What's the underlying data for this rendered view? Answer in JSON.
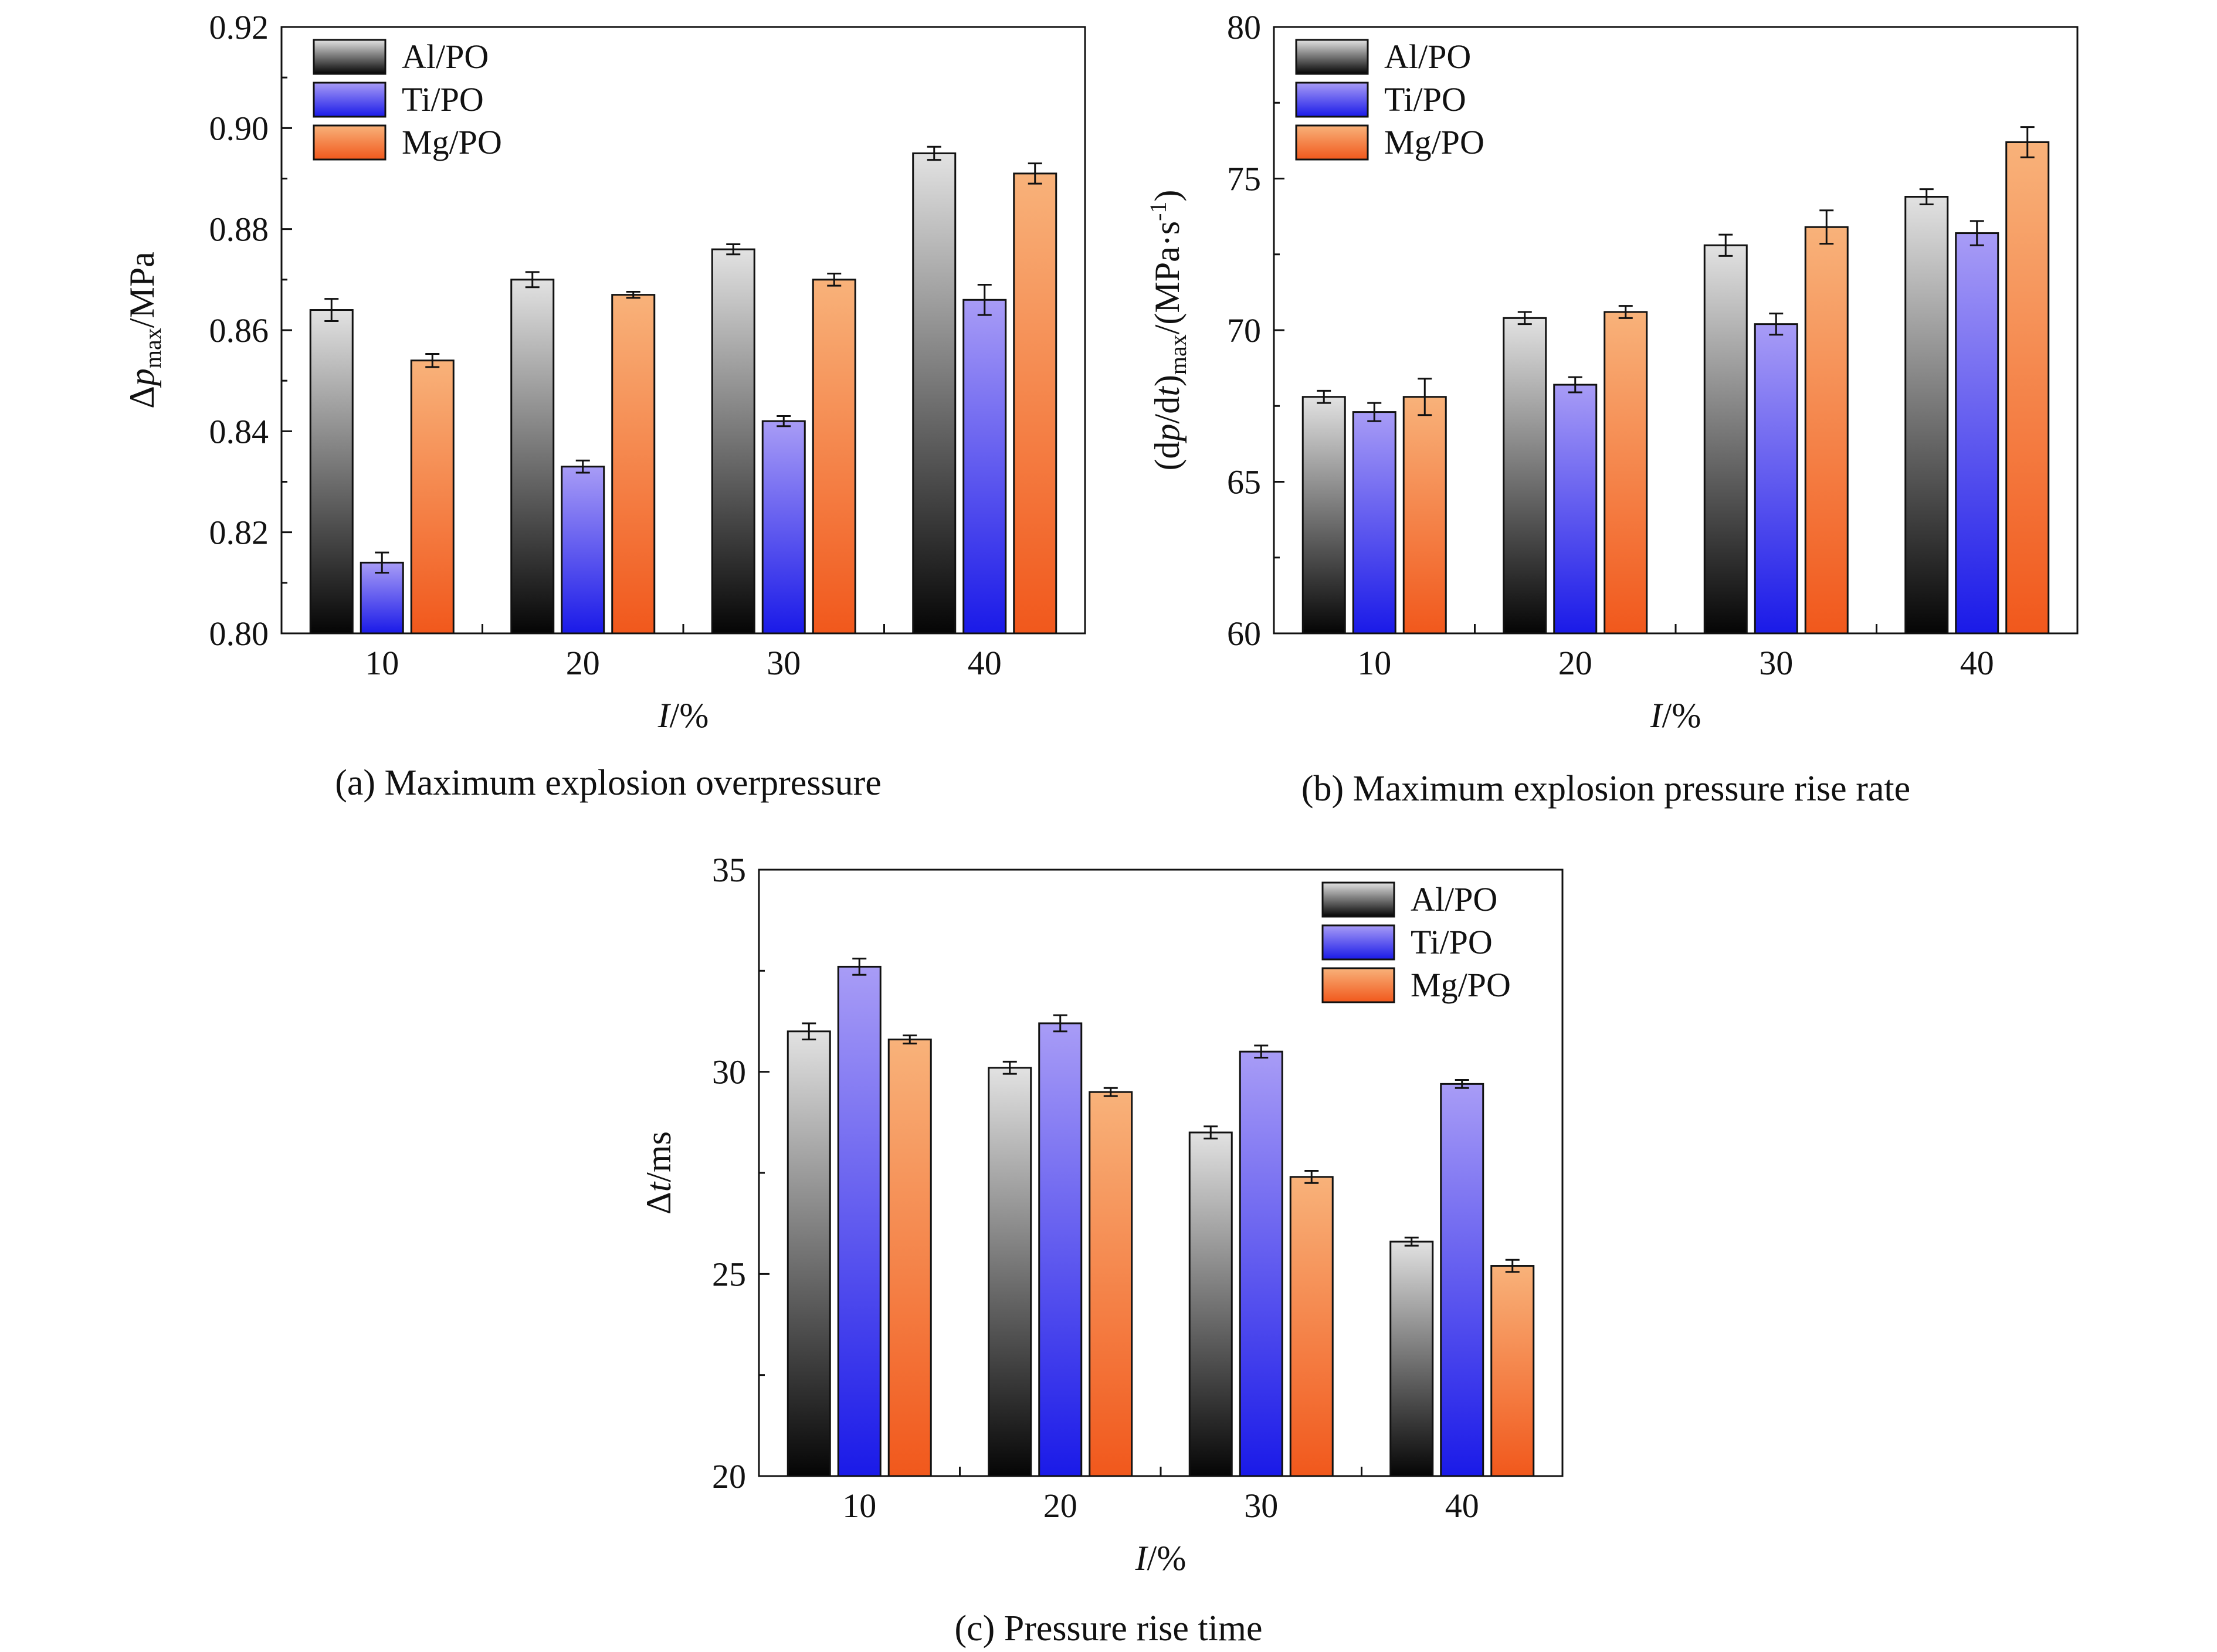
{
  "colors": {
    "Al/PO": {
      "top": "#e2e2e2",
      "bottom": "#050505"
    },
    "Ti/PO": {
      "top": "#a89cf6",
      "bottom": "#1a1ae8"
    },
    "Mg/PO": {
      "top": "#f8b27a",
      "bottom": "#f1581c"
    }
  },
  "chart_data": [
    {
      "type": "bar",
      "caption": "(a) Maximum explosion overpressure",
      "xlabel": "I/%",
      "ylabel": "Δpmax/MPa",
      "categories": [
        "10",
        "20",
        "30",
        "40"
      ],
      "ylim": [
        0.8,
        0.92
      ],
      "yticks": [
        "0.80",
        "0.82",
        "0.84",
        "0.86",
        "0.88",
        "0.90",
        "0.92"
      ],
      "legend_position": "top-left",
      "series": [
        {
          "name": "Al/PO",
          "values": [
            0.864,
            0.87,
            0.876,
            0.895
          ],
          "errors": [
            0.0022,
            0.0015,
            0.001,
            0.0013
          ]
        },
        {
          "name": "Ti/PO",
          "values": [
            0.814,
            0.833,
            0.842,
            0.866
          ],
          "errors": [
            0.002,
            0.0012,
            0.001,
            0.003
          ]
        },
        {
          "name": "Mg/PO",
          "values": [
            0.854,
            0.867,
            0.87,
            0.891
          ],
          "errors": [
            0.0013,
            0.0006,
            0.0012,
            0.002
          ]
        }
      ]
    },
    {
      "type": "bar",
      "caption": "(b) Maximum explosion pressure rise rate",
      "xlabel": "I/%",
      "ylabel": "(dp/dt)max/(MPa·s-1)",
      "categories": [
        "10",
        "20",
        "30",
        "40"
      ],
      "ylim": [
        60,
        80
      ],
      "yticks": [
        "60",
        "65",
        "70",
        "75",
        "80"
      ],
      "legend_position": "top-left",
      "series": [
        {
          "name": "Al/PO",
          "values": [
            67.8,
            70.4,
            72.8,
            74.4
          ],
          "errors": [
            0.2,
            0.2,
            0.35,
            0.25
          ]
        },
        {
          "name": "Ti/PO",
          "values": [
            67.3,
            68.2,
            70.2,
            73.2
          ],
          "errors": [
            0.3,
            0.25,
            0.35,
            0.4
          ]
        },
        {
          "name": "Mg/PO",
          "values": [
            67.8,
            70.6,
            73.4,
            76.2
          ],
          "errors": [
            0.6,
            0.2,
            0.55,
            0.5
          ]
        }
      ]
    },
    {
      "type": "bar",
      "caption": "(c) Pressure rise time",
      "xlabel": "I/%",
      "ylabel": "Δt/ms",
      "categories": [
        "10",
        "20",
        "30",
        "40"
      ],
      "ylim": [
        20,
        35
      ],
      "yticks": [
        "20",
        "25",
        "30",
        "35"
      ],
      "legend_position": "top-right",
      "series": [
        {
          "name": "Al/PO",
          "values": [
            31.0,
            30.1,
            28.5,
            25.8
          ],
          "errors": [
            0.2,
            0.15,
            0.15,
            0.1
          ]
        },
        {
          "name": "Ti/PO",
          "values": [
            32.6,
            31.2,
            30.5,
            29.7
          ],
          "errors": [
            0.2,
            0.2,
            0.15,
            0.1
          ]
        },
        {
          "name": "Mg/PO",
          "values": [
            30.8,
            29.5,
            27.4,
            25.2
          ],
          "errors": [
            0.1,
            0.1,
            0.15,
            0.15
          ]
        }
      ]
    }
  ]
}
